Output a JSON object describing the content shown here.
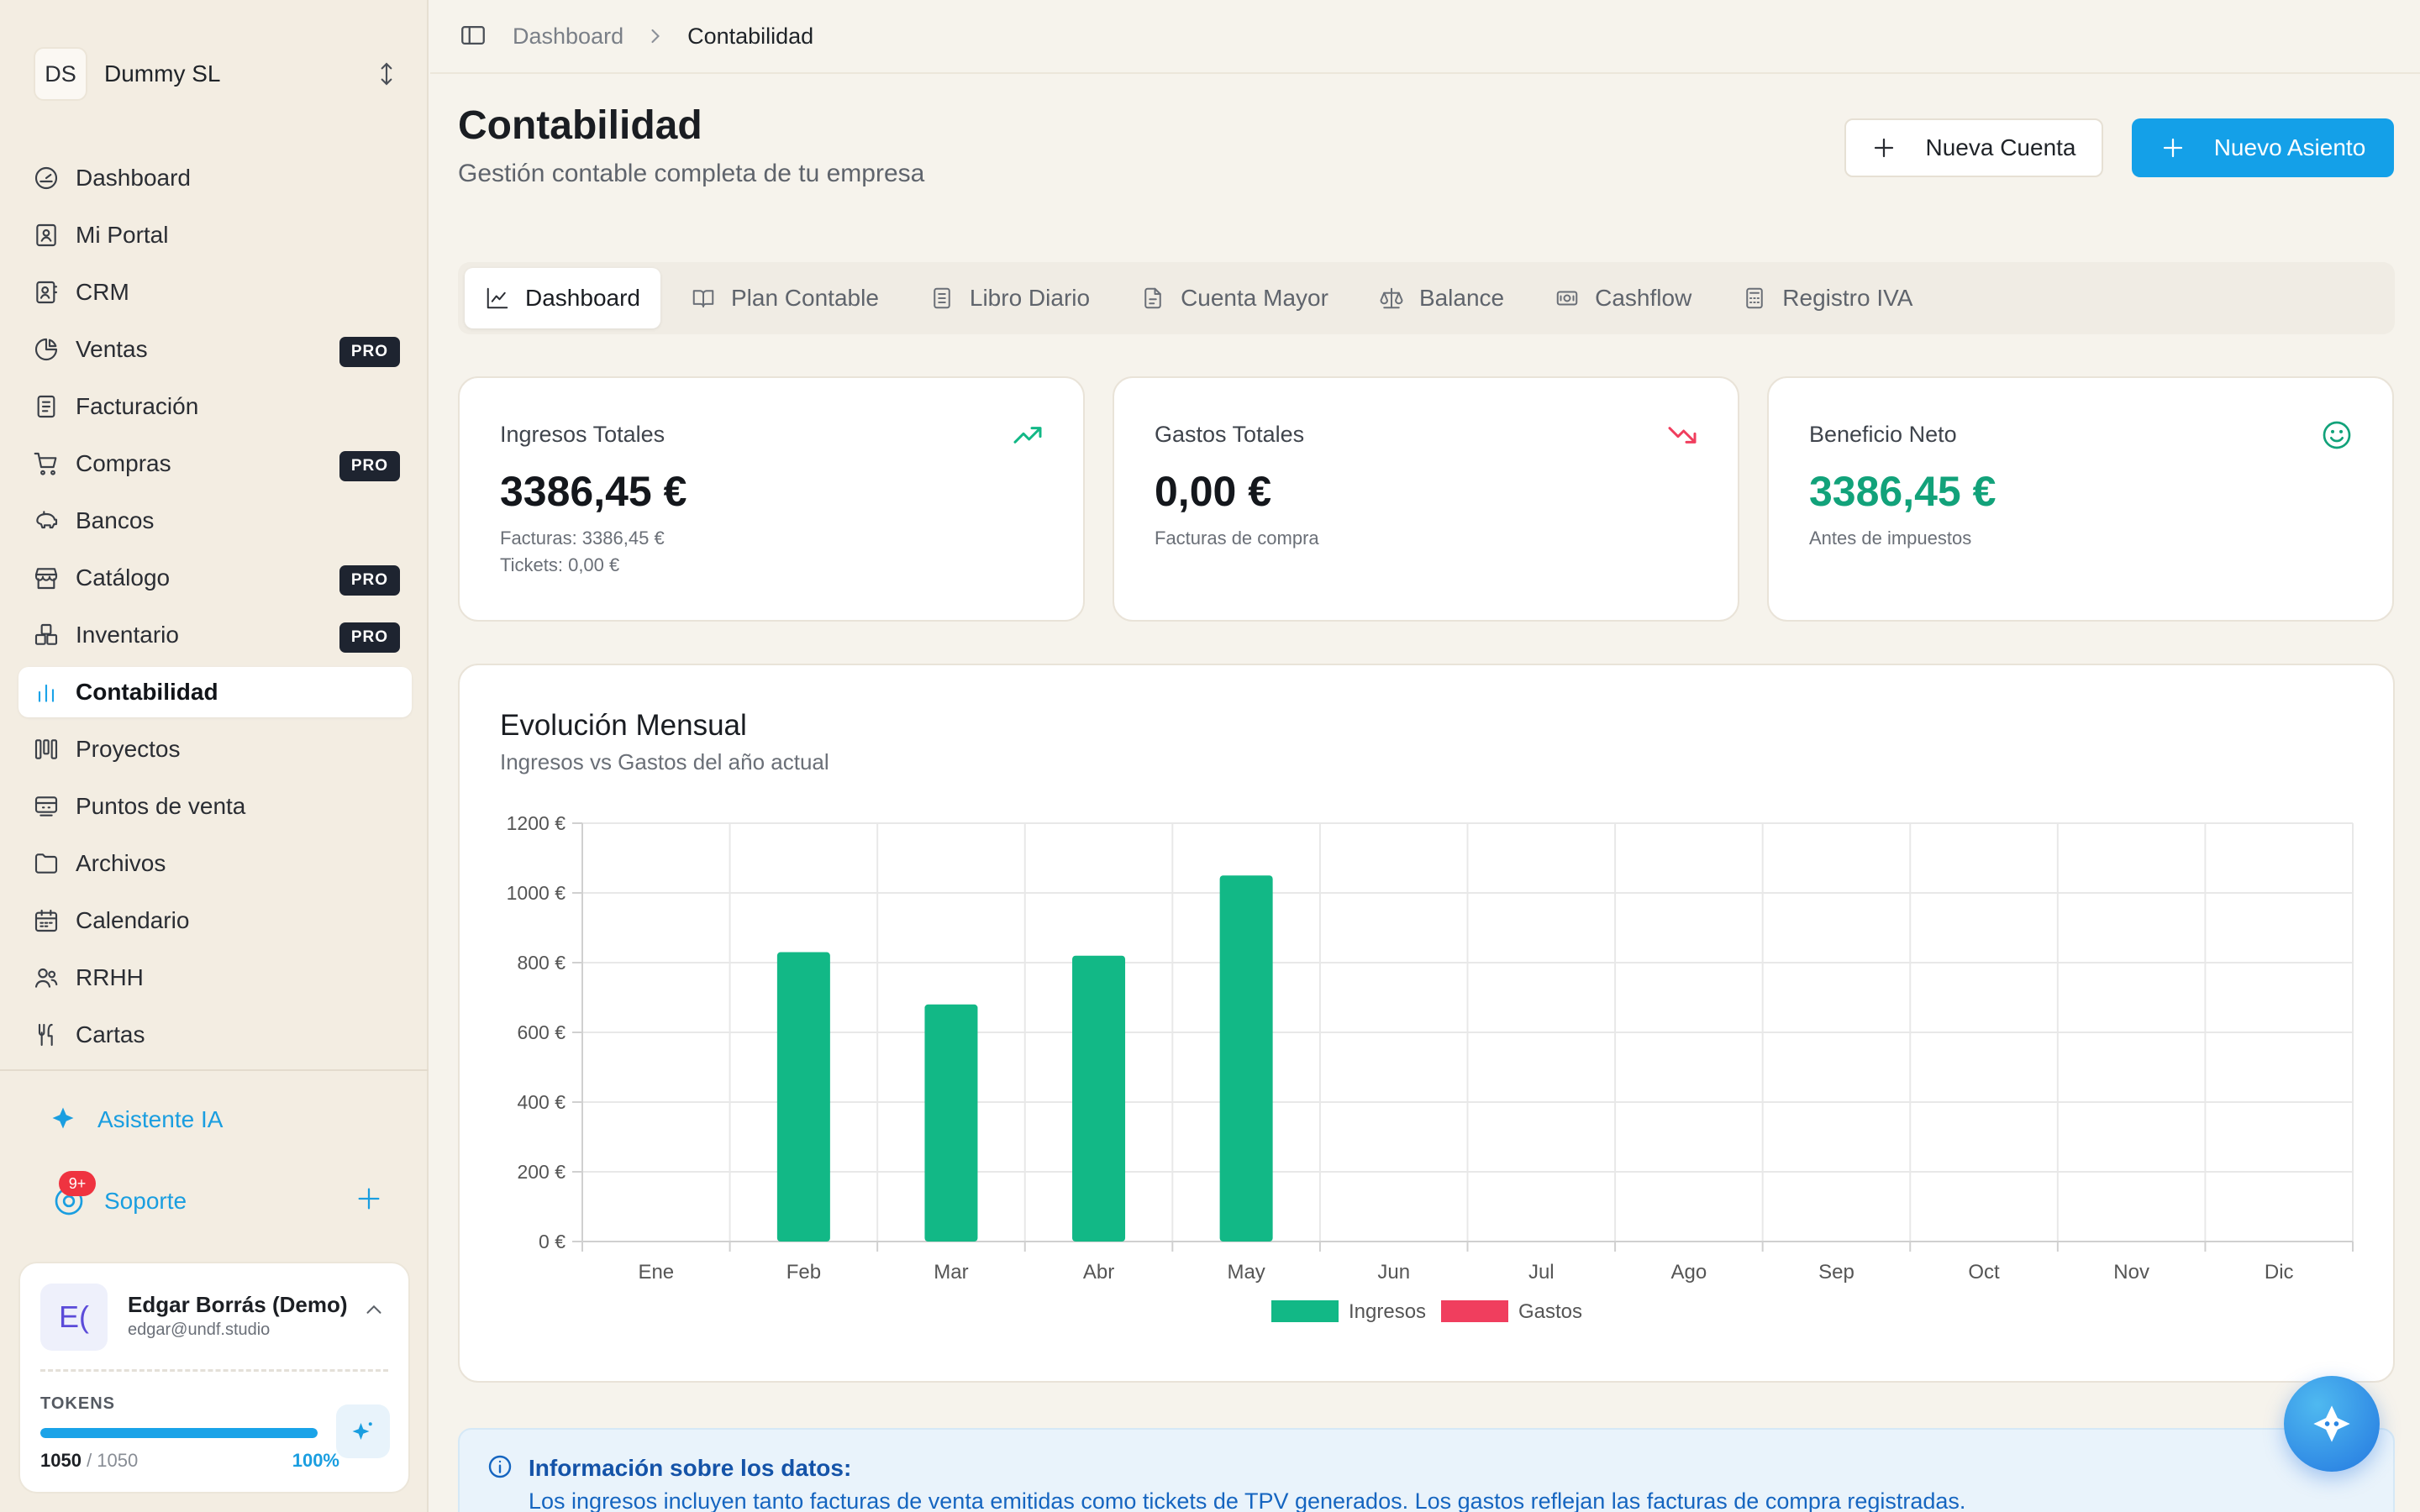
{
  "org": {
    "initials": "DS",
    "name": "Dummy SL"
  },
  "sidebar": {
    "items": [
      {
        "label": "Dashboard",
        "icon": "dashboard-gauge-icon"
      },
      {
        "label": "Mi Portal",
        "icon": "portal-icon"
      },
      {
        "label": "CRM",
        "icon": "contacts-icon"
      },
      {
        "label": "Ventas",
        "icon": "pie-chart-icon",
        "badge": "PRO"
      },
      {
        "label": "Facturación",
        "icon": "invoice-icon"
      },
      {
        "label": "Compras",
        "icon": "cart-icon",
        "badge": "PRO"
      },
      {
        "label": "Bancos",
        "icon": "piggy-bank-icon"
      },
      {
        "label": "Catálogo",
        "icon": "store-icon",
        "badge": "PRO"
      },
      {
        "label": "Inventario",
        "icon": "boxes-icon",
        "badge": "PRO"
      },
      {
        "label": "Contabilidad",
        "icon": "bar-chart-icon",
        "active": true
      },
      {
        "label": "Proyectos",
        "icon": "kanban-icon"
      },
      {
        "label": "Puntos de venta",
        "icon": "register-icon"
      },
      {
        "label": "Archivos",
        "icon": "folder-icon"
      },
      {
        "label": "Calendario",
        "icon": "calendar-icon"
      },
      {
        "label": "RRHH",
        "icon": "users-icon"
      },
      {
        "label": "Cartas",
        "icon": "utensils-icon"
      }
    ],
    "assistant_label": "Asistente IA",
    "support_label": "Soporte",
    "support_badge": "9+"
  },
  "user": {
    "initials": "E(",
    "name": "Edgar Borrás (Demo)",
    "email": "edgar@undf.studio",
    "tokens_label": "TOKENS",
    "tokens_used": "1050",
    "tokens_total": "/ 1050",
    "tokens_pct": "100%",
    "tokens_fraction": 1.0
  },
  "breadcrumb": {
    "root": "Dashboard",
    "current": "Contabilidad"
  },
  "header": {
    "title": "Contabilidad",
    "subtitle": "Gestión contable completa de tu empresa",
    "new_account_label": "Nueva Cuenta",
    "new_entry_label": "Nuevo Asiento"
  },
  "tabs": [
    {
      "label": "Dashboard",
      "icon": "line-chart-icon",
      "active": true
    },
    {
      "label": "Plan Contable",
      "icon": "book-open-icon"
    },
    {
      "label": "Libro Diario",
      "icon": "notebook-icon"
    },
    {
      "label": "Cuenta Mayor",
      "icon": "file-text-icon"
    },
    {
      "label": "Balance",
      "icon": "scale-icon"
    },
    {
      "label": "Cashflow",
      "icon": "banknote-icon"
    },
    {
      "label": "Registro IVA",
      "icon": "calculator-icon"
    }
  ],
  "cards": {
    "income": {
      "title": "Ingresos Totales",
      "value": "3386,45 €",
      "note1": "Facturas: 3386,45 €",
      "note2": "Tickets: 0,00 €"
    },
    "expenses": {
      "title": "Gastos Totales",
      "value": "0,00 €",
      "note1": "Facturas de compra"
    },
    "profit": {
      "title": "Beneficio Neto",
      "value": "3386,45 €",
      "note1": "Antes de impuestos"
    }
  },
  "colors": {
    "accent": "#14a0e8",
    "income": "#12b886",
    "expense": "#f03e5e",
    "profit": "#12a27a"
  },
  "chart_title": "Evolución Mensual",
  "chart_subtitle": "Ingresos vs Gastos del año actual",
  "chart_data": {
    "type": "bar",
    "title": "Evolución Mensual",
    "subtitle": "Ingresos vs Gastos del año actual",
    "categories": [
      "Ene",
      "Feb",
      "Mar",
      "Abr",
      "May",
      "Jun",
      "Jul",
      "Ago",
      "Sep",
      "Oct",
      "Nov",
      "Dic"
    ],
    "series": [
      {
        "name": "Ingresos",
        "values": [
          0,
          830,
          680,
          820,
          1050,
          0,
          0,
          0,
          0,
          0,
          0,
          0
        ],
        "color": "#12b886"
      },
      {
        "name": "Gastos",
        "values": [
          0,
          0,
          0,
          0,
          0,
          0,
          0,
          0,
          0,
          0,
          0,
          0
        ],
        "color": "#f03e5e"
      }
    ],
    "ylim": [
      0,
      1200
    ],
    "yticks": [
      "0 €",
      "200 €",
      "400 €",
      "600 €",
      "800 €",
      "1000 €",
      "1200 €"
    ],
    "grid": true,
    "legend": "bottom-center"
  },
  "info": {
    "title": "Información sobre los datos:",
    "body": "Los ingresos incluyen tanto facturas de venta emitidas como tickets de TPV generados. Los gastos reflejan las facturas de compra registradas."
  }
}
